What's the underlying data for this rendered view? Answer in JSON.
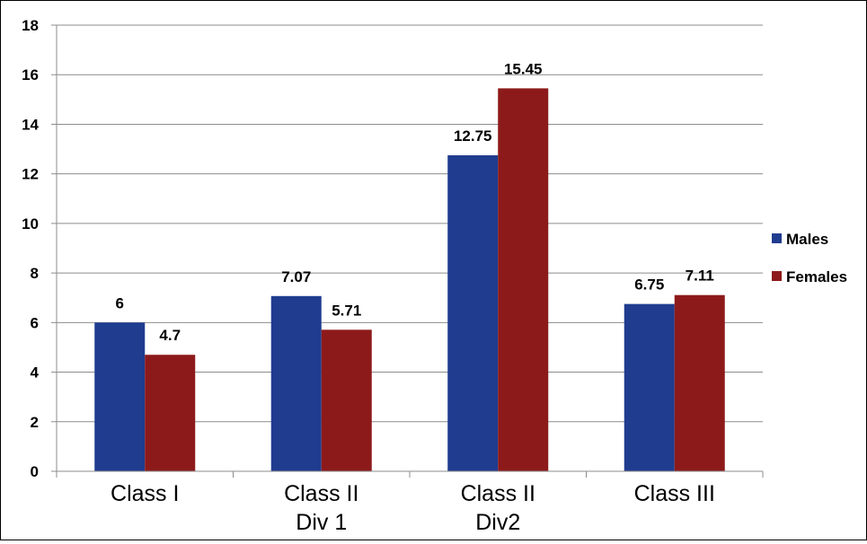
{
  "chart_data": {
    "type": "bar",
    "title": "",
    "xlabel": "",
    "ylabel": "",
    "categories": [
      [
        "Class I"
      ],
      [
        "Class II",
        "Div 1"
      ],
      [
        "Class II",
        "Div2"
      ],
      [
        "Class III"
      ]
    ],
    "series": [
      {
        "name": "Males",
        "values": [
          6,
          7.07,
          12.75,
          6.75
        ],
        "labels": [
          "6",
          "7.07",
          "12.75",
          "6.75"
        ],
        "color": "#1f3c8f"
      },
      {
        "name": "Females",
        "values": [
          4.7,
          5.71,
          15.45,
          7.11
        ],
        "labels": [
          "4.7",
          "5.71",
          "15.45",
          "7.11"
        ],
        "color": "#8d1a1a"
      }
    ],
    "ylim": [
      0,
      18
    ],
    "yticks": [
      0,
      2,
      4,
      6,
      8,
      10,
      12,
      14,
      16,
      18
    ],
    "grid": true,
    "legend": "right"
  }
}
